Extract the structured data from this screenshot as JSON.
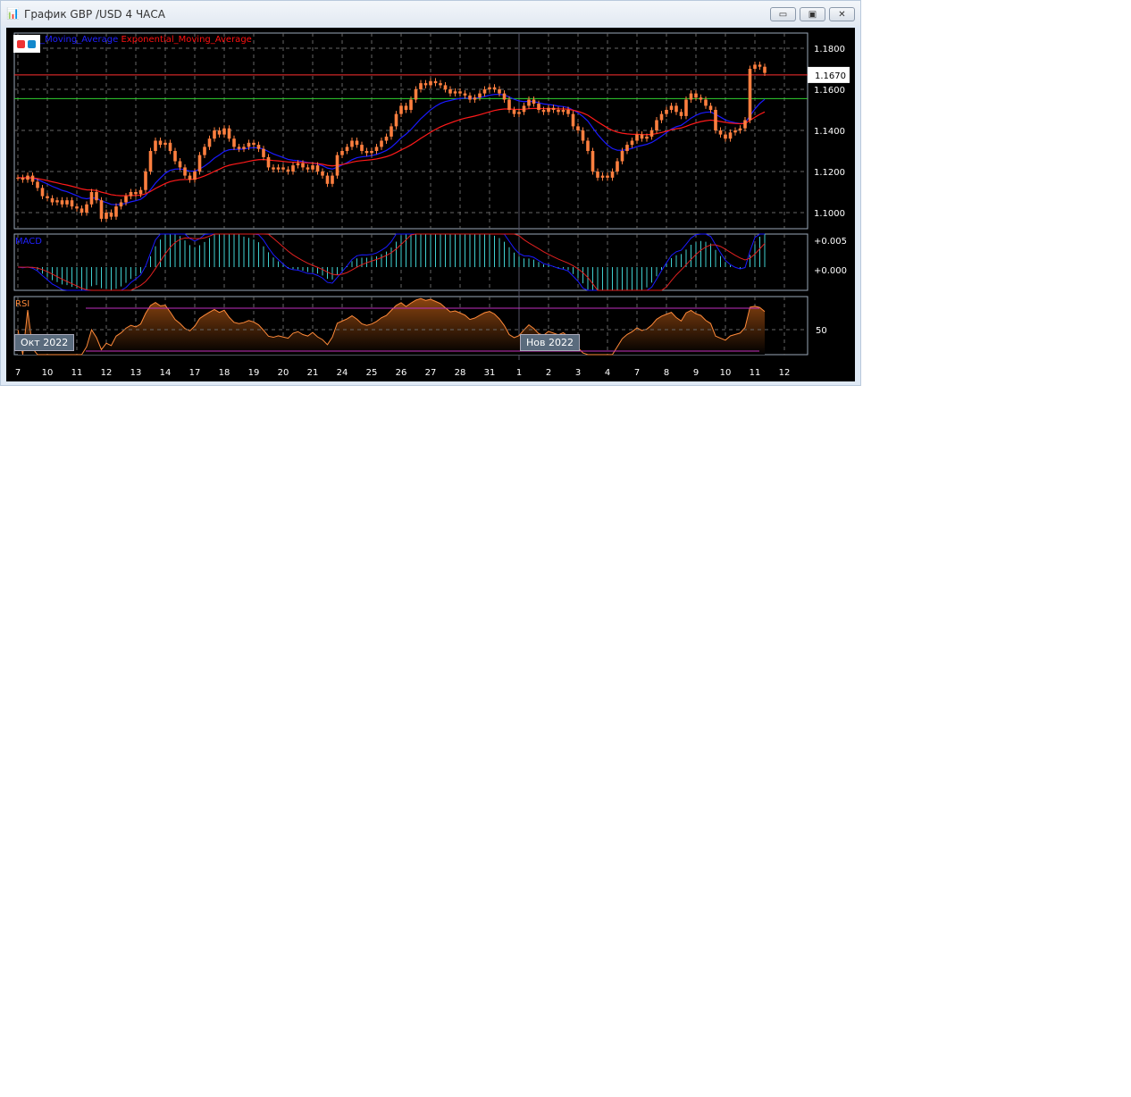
{
  "window": {
    "title": "График GBP /USD  4 ЧАСА",
    "buttons": [
      "minimize",
      "restore",
      "close"
    ]
  },
  "legend": {
    "ema1": "ential_Moving_Average",
    "ema2": "Exponential_Moving_Average",
    "ema1_color": "#0000ff",
    "ema2_color": "#ff0000"
  },
  "indicators": {
    "macd": "MACD",
    "rsi": "RSI",
    "macd_ticks": [
      "+0.005",
      "+0.000"
    ],
    "rsi_ticks": [
      "50"
    ]
  },
  "period_tags": [
    "Окт 2022",
    "Нов 2022"
  ],
  "chart_data": {
    "type": "candlestick",
    "symbol": "GBP/USD",
    "timeframe": "4h",
    "ylim": [
      1.095,
      1.183
    ],
    "yticks": [
      "1.1800",
      "1.1600",
      "1.1400",
      "1.1200",
      "1.1000"
    ],
    "current_price": "1.1670",
    "hlines": [
      {
        "value": 1.167,
        "color": "#ff3030"
      },
      {
        "value": 1.1555,
        "color": "#30d030"
      }
    ],
    "xticks": [
      "7",
      "10",
      "11",
      "12",
      "13",
      "14",
      "17",
      "18",
      "19",
      "20",
      "21",
      "24",
      "25",
      "26",
      "27",
      "28",
      "31",
      "1",
      "2",
      "3",
      "4",
      "7",
      "8",
      "9",
      "10",
      "11",
      "12"
    ],
    "candle_color": "#ff7f3f",
    "closes": [
      1.117,
      1.116,
      1.118,
      1.115,
      1.112,
      1.108,
      1.107,
      1.105,
      1.106,
      1.104,
      1.106,
      1.103,
      1.102,
      1.1,
      1.104,
      1.11,
      1.106,
      1.097,
      1.1,
      1.098,
      1.103,
      1.105,
      1.108,
      1.11,
      1.109,
      1.111,
      1.12,
      1.13,
      1.135,
      1.133,
      1.134,
      1.13,
      1.125,
      1.122,
      1.118,
      1.116,
      1.12,
      1.128,
      1.132,
      1.136,
      1.14,
      1.138,
      1.141,
      1.136,
      1.132,
      1.131,
      1.132,
      1.134,
      1.133,
      1.131,
      1.127,
      1.122,
      1.121,
      1.122,
      1.121,
      1.12,
      1.123,
      1.124,
      1.122,
      1.121,
      1.123,
      1.12,
      1.118,
      1.114,
      1.118,
      1.128,
      1.13,
      1.132,
      1.135,
      1.133,
      1.13,
      1.129,
      1.13,
      1.132,
      1.135,
      1.137,
      1.142,
      1.148,
      1.152,
      1.15,
      1.155,
      1.16,
      1.163,
      1.162,
      1.164,
      1.163,
      1.162,
      1.16,
      1.158,
      1.159,
      1.158,
      1.157,
      1.155,
      1.156,
      1.158,
      1.16,
      1.161,
      1.16,
      1.158,
      1.155,
      1.15,
      1.148,
      1.149,
      1.152,
      1.155,
      1.153,
      1.15,
      1.149,
      1.151,
      1.15,
      1.149,
      1.15,
      1.148,
      1.142,
      1.14,
      1.135,
      1.13,
      1.12,
      1.117,
      1.118,
      1.117,
      1.12,
      1.125,
      1.13,
      1.133,
      1.135,
      1.138,
      1.136,
      1.137,
      1.14,
      1.145,
      1.148,
      1.15,
      1.152,
      1.149,
      1.147,
      1.155,
      1.158,
      1.156,
      1.155,
      1.152,
      1.15,
      1.14,
      1.138,
      1.136,
      1.139,
      1.14,
      1.141,
      1.145,
      1.17,
      1.172,
      1.171,
      1.168
    ],
    "macd": {
      "ylim": [
        -0.0065,
        0.0095
      ]
    },
    "rsi": {
      "levels": [
        70,
        30
      ],
      "ylim": [
        15,
        85
      ]
    }
  }
}
